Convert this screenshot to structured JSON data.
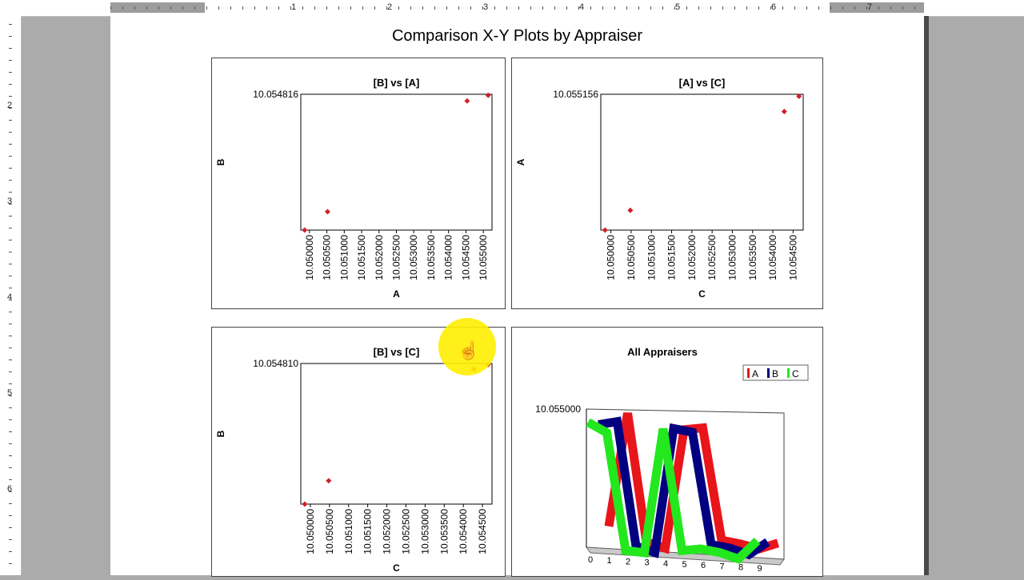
{
  "document": {
    "title": "Comparison X-Y Plots by Appraiser",
    "ruler_numbers": [
      "1",
      "2",
      "3",
      "4",
      "5",
      "6",
      "7"
    ],
    "left_ruler_numbers": [
      "2",
      "3",
      "4",
      "5",
      "6"
    ]
  },
  "chart_data": [
    {
      "type": "scatter",
      "title": "[B] vs [A]",
      "xlabel": "A",
      "ylabel": "B",
      "x_ticks": [
        "10.050000",
        "10.050500",
        "10.051000",
        "10.051500",
        "10.052000",
        "10.052500",
        "10.053000",
        "10.053500",
        "10.054000",
        "10.054500",
        "10.055000"
      ],
      "xlim": [
        10.05,
        10.055
      ],
      "ylim": [
        10.05,
        10.054816
      ],
      "y_tick_label": "10.054816",
      "points": [
        {
          "x": 10.0501,
          "y": 10.05
        },
        {
          "x": 10.0507,
          "y": 10.05065
        },
        {
          "x": 10.05435,
          "y": 10.05458
        },
        {
          "x": 10.0549,
          "y": 10.05478
        }
      ],
      "marker_color": "#d0202a"
    },
    {
      "type": "scatter",
      "title": "[A] vs [C]",
      "xlabel": "C",
      "ylabel": "A",
      "x_ticks": [
        "10.050000",
        "10.050500",
        "10.051000",
        "10.051500",
        "10.052000",
        "10.052500",
        "10.053000",
        "10.053500",
        "10.054000",
        "10.054500"
      ],
      "xlim": [
        10.05,
        10.0548
      ],
      "ylim": [
        10.05,
        10.055156
      ],
      "y_tick_label": "10.055156",
      "points": [
        {
          "x": 10.0501,
          "y": 10.05
        },
        {
          "x": 10.0507,
          "y": 10.05075
        },
        {
          "x": 10.05435,
          "y": 10.0545
        },
        {
          "x": 10.0547,
          "y": 10.05508
        }
      ],
      "marker_color": "#d0202a"
    },
    {
      "type": "scatter",
      "title": "[B] vs [C]",
      "xlabel": "C",
      "ylabel": "B",
      "x_ticks": [
        "10.050000",
        "10.050500",
        "10.051000",
        "10.051500",
        "10.052000",
        "10.052500",
        "10.053000",
        "10.053500",
        "10.054000",
        "10.054500"
      ],
      "xlim": [
        10.05,
        10.0548
      ],
      "ylim": [
        10.05,
        10.05481
      ],
      "y_tick_label": "10.054810",
      "points": [
        {
          "x": 10.0501,
          "y": 10.05
        },
        {
          "x": 10.0507,
          "y": 10.0508
        },
        {
          "x": 10.05435,
          "y": 10.05462
        },
        {
          "x": 10.0547,
          "y": 10.05477
        }
      ],
      "marker_color": "#d0202a"
    },
    {
      "type": "line",
      "title": "All Appraisers",
      "y_tick_label": "10.055000",
      "x": [
        0,
        1,
        2,
        3,
        4,
        5,
        6,
        7,
        8,
        9
      ],
      "legend_position": "top-right",
      "series": [
        {
          "name": "A",
          "color": "#e8151b",
          "values": [
            0.16,
            1.0,
            0.06,
            0.02,
            0.9,
            0.92,
            0.1,
            0.08,
            0.05,
            0.1
          ]
        },
        {
          "name": "B",
          "color": "#000080",
          "values": [
            0.92,
            0.95,
            0.04,
            0.0,
            0.92,
            0.9,
            0.08,
            0.06,
            0.02,
            0.12
          ]
        },
        {
          "name": "C",
          "color": "#22e81d",
          "values": [
            0.95,
            0.88,
            0.02,
            0.01,
            0.93,
            0.04,
            0.06,
            0.04,
            0.0,
            0.14
          ]
        }
      ]
    }
  ]
}
